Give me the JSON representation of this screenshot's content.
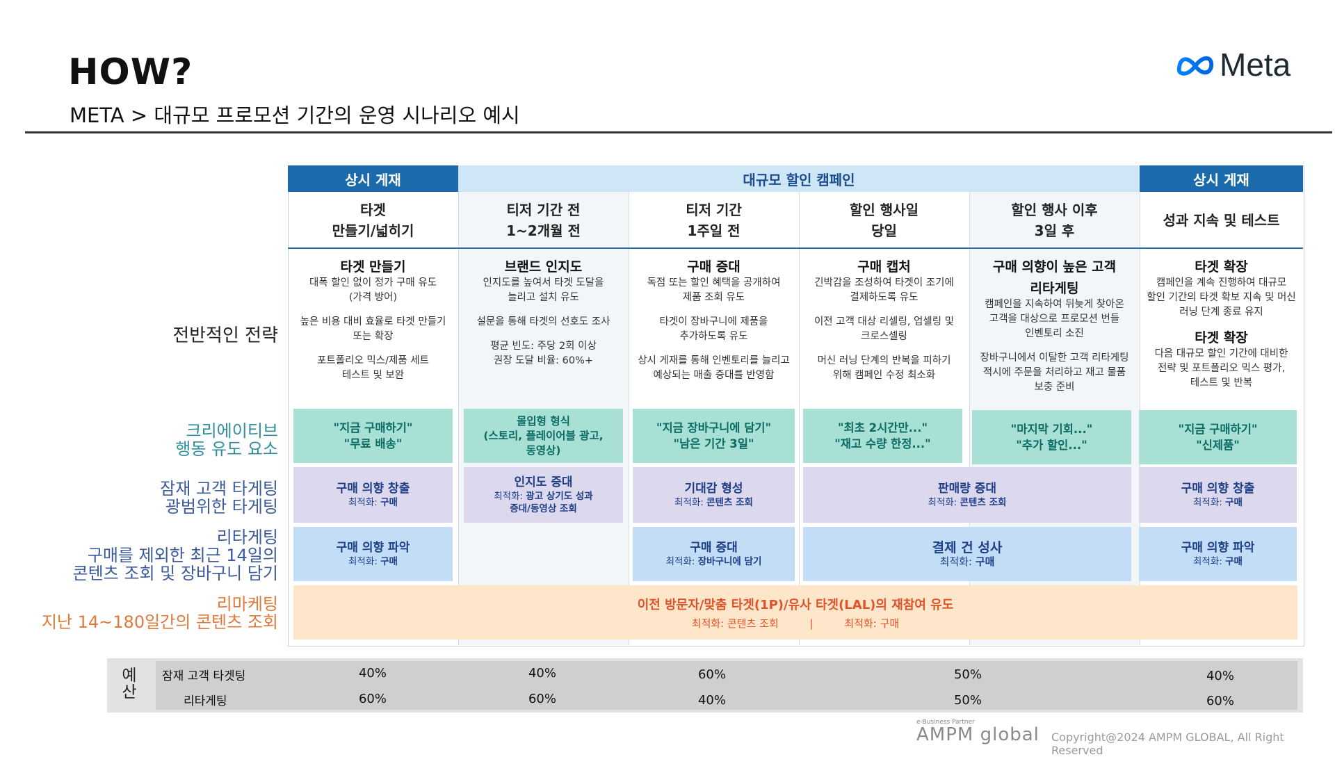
{
  "header": {
    "title": "HOW?",
    "subtitle": "META > 대규모 프로모션 기간의 운영 시나리오 예시",
    "logo_text": "Meta"
  },
  "top_headers": [
    {
      "label": "상시 게재"
    },
    {
      "label": "대규모 할인 캠페인"
    },
    {
      "label": "상시 게재"
    }
  ],
  "phases": [
    {
      "line1": "타겟",
      "line2": "만들기/넓히기"
    },
    {
      "line1": "티저 기간 전",
      "line2": "1~2개월 전"
    },
    {
      "line1": "티저 기간",
      "line2": "1주일 전"
    },
    {
      "line1": "할인 행사일",
      "line2": "당일"
    },
    {
      "line1": "할인 행사 이후",
      "line2": "3일 후"
    },
    {
      "line1": "성과 지속 및 테스트",
      "line2": ""
    }
  ],
  "row_labels": {
    "strategy": "전반적인 전략",
    "creative_1": "크리에이티브",
    "creative_2": "행동 유도 요소",
    "prospect_1": "잠재 고객 타게팅",
    "prospect_2": "광범위한 타게팅",
    "retarget_1": "리타게팅",
    "retarget_2": "구매를 제외한 최근 14일의",
    "retarget_3": "콘텐츠 조회 및 장바구니 담기",
    "remarketing_1": "리마케팅",
    "remarketing_2": "지난 14~180일간의 콘텐츠 조회"
  },
  "strategy": [
    {
      "heading": "타겟 만들기",
      "a": "대폭 할인 없이 정가 구매 유도",
      "b": "(가격 방어)",
      "c": "높은 비용 대비 효율로 타겟 만들기",
      "d": "또는 확장",
      "e": "포트폴리오 믹스/제품 세트",
      "f": "테스트 및 보완"
    },
    {
      "heading": "브랜드 인지도",
      "a": "인지도를 높여서 타겟 도달을",
      "b": "늘리고 설치 유도",
      "c": "설문을 통해 타겟의 선호도 조사",
      "d": "평균 빈도: 주당 2회 이상",
      "e": "권장 도달 비율: 60%+"
    },
    {
      "heading": "구매 증대",
      "a": "독점 또는 할인 혜택을 공개하여",
      "b": "제품 조회 유도",
      "c": "타겟이 장바구니에 제품을",
      "d": "추가하도록 유도",
      "e": "상시 게재를 통해 인벤토리를 늘리고",
      "f": "예상되는 매출 증대를 반영함"
    },
    {
      "heading": "구매 캡처",
      "a": "긴박감을 조성하여 타겟이 조기에",
      "b": "결제하도록 유도",
      "c": "이전 고객 대상 리셀링, 업셀링 및",
      "d": "크로스셀링",
      "e": "머신 러닝 단계의 반복을 피하기",
      "f": "위해 캠페인 수정 최소화"
    },
    {
      "heading": "구매 의향이 높은 고객",
      "heading2": "리타게팅",
      "a": "캠페인을 지속하여 뒤늦게 찾아온",
      "b": "고객을 대상으로 프로모션 번들",
      "c": "인벤토리 소진",
      "d": "장바구니에서 이탈한 고객 리타게팅",
      "e": "적시에 주문을 처리하고 재고 물품",
      "f": "보충 준비"
    },
    {
      "heading": "타겟 확장",
      "a": "캠페인을 계속 진행하여 대규모",
      "b": "할인 기간의 타겟 확보 지속 및 머신",
      "c": "러닝 단계 종료 유지",
      "heading2": "타겟 확장",
      "d": "다음 대규모 할인 기간에 대비한",
      "e": "전략 및 포트폴리오 믹스 평가,",
      "f": "테스트 및 반복"
    }
  ],
  "creative": [
    {
      "l1": "\"지금 구매하기\"",
      "l2": "\"무료 배송\""
    },
    {
      "l1": "몰입형 형식",
      "l2": "(스토리, 플레이어블 광고,",
      "l3": "동영상)"
    },
    {
      "l1": "\"지금 장바구니에 담기\"",
      "l2": "\"남은 기간 3일\""
    },
    {
      "l1": "\"최초 2시간만...\"",
      "l2": "\"재고 수량 한정...\""
    },
    {
      "l1": "\"마지막 기회...\"",
      "l2": "\"추가 할인...\""
    },
    {
      "l1": "\"지금 구매하기\"",
      "l2": "\"신제품\""
    }
  ],
  "prospecting": [
    {
      "title": "구매 의향 창출",
      "prefix": "최적화: ",
      "value": "구매"
    },
    {
      "title": "인지도 증대",
      "prefix": "최적화: ",
      "value": "광고 상기도 성과",
      "value2": "증대/동영상 조회"
    },
    {
      "title": "기대감 형성",
      "prefix": "최적화: ",
      "value": "콘텐츠 조회"
    },
    {
      "title": "판매량 증대",
      "prefix": "최적화: ",
      "value": "콘텐츠 조회"
    },
    {
      "title": "구매 의향 창출",
      "prefix": "최적화: ",
      "value": "구매"
    }
  ],
  "retargeting": [
    {
      "title": "구매 의향 파악",
      "prefix": "최적화: ",
      "value": "구매"
    },
    {
      "title": "구매 증대",
      "prefix": "최적화: ",
      "value": "장바구니에 담기"
    },
    {
      "title": "결제 건 성사",
      "prefix": "최적화: ",
      "value": "구매"
    },
    {
      "title": "구매 의향 파악",
      "prefix": "최적화: ",
      "value": "구매"
    }
  ],
  "remarketing": {
    "title": "이전 방문자/맞춤 타겟(1P)/유사 타겟(LAL)의 재참여 유도",
    "opt1": "최적화: 콘텐츠 조회",
    "sep": "|",
    "opt2": "최적화: 구매"
  },
  "budget": {
    "label": "예산",
    "row1_label": "잠재 고객 타겟팅",
    "row2_label": "리타게팅",
    "row1": [
      "40%",
      "40%",
      "60%",
      "50%",
      "40%"
    ],
    "row2": [
      "60%",
      "60%",
      "40%",
      "50%",
      "60%"
    ]
  },
  "footer": {
    "partner_tag": "e-Business Partner",
    "brand": "AMPM global",
    "copyright": "Copyright@2024 AMPM GLOBAL, All Right Reserved"
  },
  "colors": {
    "header_dark": "#1b6aab",
    "header_light": "#cfe6f7",
    "creative_teal": "#a8e0d6",
    "prospect_lavender": "#dcd9ef",
    "retarget_blue": "#c3ddf6",
    "remarketing_orange": "#fde6c9",
    "meta_blue": "#0668e1"
  }
}
